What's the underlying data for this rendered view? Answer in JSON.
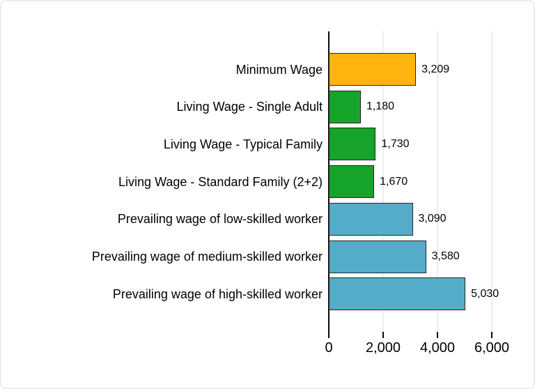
{
  "chart_data": {
    "type": "bar",
    "orientation": "horizontal",
    "title": "",
    "xlabel": "",
    "ylabel": "",
    "categories": [
      "Minimum Wage",
      "Living Wage - Single Adult",
      "Living Wage - Typical Family",
      "Living Wage - Standard Family (2+2)",
      "Prevailing wage of low-skilled worker",
      "Prevailing wage of medium-skilled worker",
      "Prevailing wage of high-skilled worker"
    ],
    "values": [
      3209,
      1180,
      1730,
      1670,
      3090,
      3580,
      5030
    ],
    "value_labels": [
      "3,209",
      "1,180",
      "1,730",
      "1,670",
      "3,090",
      "3,580",
      "5,030"
    ],
    "bar_colors": [
      "#FFB30F",
      "#17A42A",
      "#17A42A",
      "#17A42A",
      "#54ACC8",
      "#54ACC8",
      "#54ACC8"
    ],
    "xlim": [
      0,
      6000
    ],
    "x_ticks": [
      0,
      2000,
      4000,
      6000
    ],
    "x_tick_labels": [
      "0",
      "2,000",
      "4,000",
      "6,000"
    ],
    "grid": true,
    "legend": false
  },
  "colors": {
    "bar_border": "#262626",
    "axis": "#0a0a0a",
    "tick": "#0a0a0a",
    "gridline": "#e8eef3",
    "frame_border": "#e7edf3",
    "background": "#ffffff",
    "text": "#000000"
  }
}
